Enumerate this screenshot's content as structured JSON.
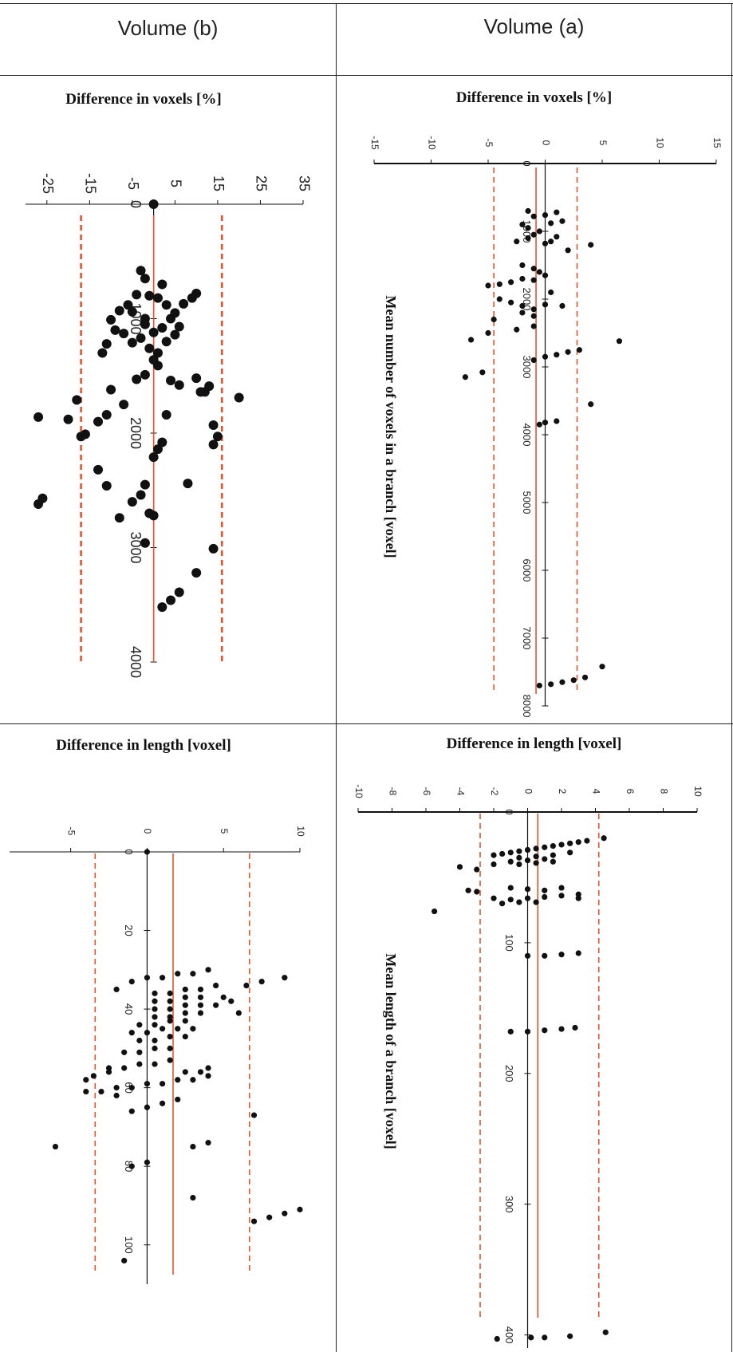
{
  "headers": {
    "col_left": "Volume (b)",
    "col_right": "Volume (a)"
  },
  "panels": {
    "b_voxels_title": "Difference in  voxels [%]",
    "a_voxels_title": "Difference in voxels [%]",
    "b_length_title": "Difference in length [voxel]",
    "a_length_title": "Difference in length [voxel]"
  },
  "colors": {
    "mean_line": "#e8532a",
    "limit_line": "#e8532a",
    "points": "#111111",
    "axis": "#111111"
  },
  "chart_data": [
    {
      "id": "b_voxels",
      "type": "scatter",
      "title": "Difference in  voxels [%]",
      "xlabel": "",
      "ylabel": "",
      "orientation": "rotated-90 (difference axis horizontal, mean value axis vertical)",
      "diff_ticks": [
        "-25",
        "-15",
        "-5",
        "5",
        "15",
        "25",
        "35"
      ],
      "diff_tick_values": [
        -25,
        -15,
        -5,
        5,
        15,
        25,
        35
      ],
      "diff_range": [
        -30,
        35
      ],
      "mean_ticks": [
        "0",
        "1000",
        "2000",
        "3000",
        "4000"
      ],
      "mean_tick_values": [
        0,
        1000,
        2000,
        3000,
        4000
      ],
      "mean_range": [
        0,
        4000
      ],
      "mean_line": 0,
      "limit_lines": [
        -17,
        16
      ],
      "points": [
        [
          0,
          0
        ],
        [
          -2,
          650
        ],
        [
          -3,
          580
        ],
        [
          2,
          700
        ],
        [
          -1,
          800
        ],
        [
          -4,
          790
        ],
        [
          -6,
          880
        ],
        [
          -5,
          940
        ],
        [
          -2,
          1000
        ],
        [
          1,
          820
        ],
        [
          3,
          880
        ],
        [
          5,
          950
        ],
        [
          7,
          870
        ],
        [
          9,
          820
        ],
        [
          10,
          780
        ],
        [
          -8,
          930
        ],
        [
          -10,
          1010
        ],
        [
          -9,
          1100
        ],
        [
          -7,
          1130
        ],
        [
          -11,
          1220
        ],
        [
          -12,
          1300
        ],
        [
          -5,
          1210
        ],
        [
          -3,
          1170
        ],
        [
          -1,
          1260
        ],
        [
          1,
          1300
        ],
        [
          3,
          1200
        ],
        [
          5,
          1140
        ],
        [
          -2,
          1050
        ],
        [
          0,
          1120
        ],
        [
          2,
          1080
        ],
        [
          4,
          1000
        ],
        [
          6,
          1070
        ],
        [
          0,
          1360
        ],
        [
          1,
          1410
        ],
        [
          -2,
          1490
        ],
        [
          4,
          1540
        ],
        [
          6,
          1580
        ],
        [
          10,
          1520
        ],
        [
          12,
          1640
        ],
        [
          13,
          1590
        ],
        [
          20,
          1690
        ],
        [
          -18,
          1710
        ],
        [
          -27,
          1860
        ],
        [
          -20,
          1880
        ],
        [
          -16,
          2010
        ],
        [
          -17,
          2030
        ],
        [
          -13,
          1900
        ],
        [
          -11,
          1840
        ],
        [
          -7,
          1750
        ],
        [
          -10,
          1620
        ],
        [
          -4,
          1530
        ],
        [
          3,
          1840
        ],
        [
          11,
          1640
        ],
        [
          14,
          1930
        ],
        [
          15,
          2030
        ],
        [
          14,
          2100
        ],
        [
          2,
          2080
        ],
        [
          1,
          2140
        ],
        [
          0,
          2210
        ],
        [
          -11,
          2460
        ],
        [
          -13,
          2320
        ],
        [
          -5,
          2600
        ],
        [
          -3,
          2540
        ],
        [
          -2,
          2450
        ],
        [
          -1,
          2700
        ],
        [
          0,
          2720
        ],
        [
          -8,
          2740
        ],
        [
          -27,
          2620
        ],
        [
          -26,
          2570
        ],
        [
          -2,
          2960
        ],
        [
          8,
          2440
        ],
        [
          14,
          3010
        ],
        [
          10,
          3220
        ],
        [
          6,
          3390
        ],
        [
          4,
          3460
        ],
        [
          2,
          3520
        ]
      ]
    },
    {
      "id": "a_voxels",
      "type": "scatter",
      "title": "Difference in voxels [%]",
      "xlabel": "",
      "ylabel": "Mean number of voxels in a branch [voxel]",
      "diff_ticks": [
        "-15",
        "-10",
        "-5",
        "0",
        "5",
        "10",
        "15"
      ],
      "diff_tick_values": [
        -15,
        -10,
        -5,
        0,
        5,
        10,
        15
      ],
      "diff_range": [
        -15,
        15
      ],
      "mean_ticks": [
        "0",
        "1000",
        "2000",
        "3000",
        "4000",
        "5000",
        "6000",
        "7000",
        "8000"
      ],
      "mean_tick_values": [
        0,
        1000,
        2000,
        3000,
        4000,
        5000,
        6000,
        7000,
        8000
      ],
      "mean_range": [
        0,
        8000
      ],
      "mean_line": -0.8,
      "limit_lines": [
        -4.5,
        2.8
      ],
      "points": [
        [
          -1.5,
          700
        ],
        [
          -1,
          780
        ],
        [
          0,
          760
        ],
        [
          1,
          720
        ],
        [
          -2,
          900
        ],
        [
          -1.5,
          950
        ],
        [
          -0.5,
          1000
        ],
        [
          0.5,
          880
        ],
        [
          1.5,
          850
        ],
        [
          -1,
          1050
        ],
        [
          -2.5,
          1150
        ],
        [
          -1.5,
          1100
        ],
        [
          0,
          1180
        ],
        [
          0.5,
          1150
        ],
        [
          1,
          1080
        ],
        [
          4,
          1200
        ],
        [
          2,
          1280
        ],
        [
          -2,
          1500
        ],
        [
          -1,
          1550
        ],
        [
          -0.5,
          1600
        ],
        [
          0,
          1650
        ],
        [
          -5,
          1800
        ],
        [
          -4,
          1780
        ],
        [
          -3,
          1750
        ],
        [
          -2,
          1700
        ],
        [
          -1,
          1720
        ],
        [
          0.5,
          1900
        ],
        [
          -4,
          2000
        ],
        [
          -3,
          2050
        ],
        [
          -2,
          2100
        ],
        [
          -1,
          2150
        ],
        [
          0,
          2080
        ],
        [
          1.5,
          2100
        ],
        [
          -4.5,
          2300
        ],
        [
          -2,
          2200
        ],
        [
          -1,
          2250
        ],
        [
          -2.5,
          2450
        ],
        [
          -1,
          2400
        ],
        [
          -6.5,
          2600
        ],
        [
          -5,
          2500
        ],
        [
          6.5,
          2620
        ],
        [
          -1,
          2900
        ],
        [
          0,
          2850
        ],
        [
          1,
          2820
        ],
        [
          2,
          2780
        ],
        [
          3,
          2750
        ],
        [
          -7,
          3150
        ],
        [
          -5.5,
          3080
        ],
        [
          4,
          3550
        ],
        [
          -0.5,
          3850
        ],
        [
          0,
          3820
        ],
        [
          1,
          3800
        ],
        [
          -0.5,
          7700
        ],
        [
          0.5,
          7680
        ],
        [
          1.5,
          7650
        ],
        [
          2.5,
          7620
        ],
        [
          3.5,
          7580
        ],
        [
          5,
          7420
        ]
      ]
    },
    {
      "id": "b_length",
      "type": "scatter",
      "title": "Difference in length [voxel]",
      "xlabel": "",
      "ylabel": "",
      "diff_ticks": [
        "-5",
        "0",
        "5",
        "10"
      ],
      "diff_tick_values": [
        -5,
        0,
        5,
        10
      ],
      "diff_range": [
        -9,
        10
      ],
      "mean_ticks": [
        "0",
        "20",
        "40",
        "60",
        "80",
        "100"
      ],
      "mean_tick_values": [
        0,
        20,
        40,
        60,
        80,
        100
      ],
      "mean_range": [
        0,
        110
      ],
      "mean_line": 1.7,
      "limit_lines": [
        -3.4,
        6.7
      ],
      "points": [
        [
          0,
          0
        ],
        [
          -2,
          35
        ],
        [
          -1,
          33
        ],
        [
          0,
          32
        ],
        [
          1,
          32
        ],
        [
          2,
          31
        ],
        [
          3,
          31
        ],
        [
          4,
          30
        ],
        [
          9,
          32
        ],
        [
          7.5,
          33
        ],
        [
          6.5,
          34
        ],
        [
          0.5,
          36
        ],
        [
          1.5,
          36
        ],
        [
          2.5,
          35
        ],
        [
          3.5,
          35
        ],
        [
          4.5,
          34
        ],
        [
          0.5,
          38
        ],
        [
          1.5,
          38
        ],
        [
          2.5,
          37
        ],
        [
          3.5,
          37
        ],
        [
          5,
          37
        ],
        [
          5.5,
          38
        ],
        [
          0.5,
          40
        ],
        [
          1.5,
          40
        ],
        [
          2.5,
          39
        ],
        [
          3.5,
          39
        ],
        [
          4.5,
          39
        ],
        [
          6,
          41
        ],
        [
          0.5,
          42
        ],
        [
          1.5,
          42
        ],
        [
          2.5,
          41
        ],
        [
          3.5,
          41
        ],
        [
          -0.5,
          44
        ],
        [
          0.5,
          44
        ],
        [
          1.5,
          43
        ],
        [
          2.5,
          43
        ],
        [
          -1,
          46
        ],
        [
          0,
          46
        ],
        [
          1,
          45
        ],
        [
          2,
          45
        ],
        [
          3,
          45
        ],
        [
          -0.5,
          48
        ],
        [
          0.5,
          48
        ],
        [
          1.5,
          47
        ],
        [
          2.5,
          47
        ],
        [
          -1.5,
          51
        ],
        [
          -0.5,
          51
        ],
        [
          0.5,
          50
        ],
        [
          1.5,
          50
        ],
        [
          -2.5,
          55
        ],
        [
          -1.5,
          55
        ],
        [
          -0.5,
          54
        ],
        [
          0.5,
          54
        ],
        [
          1.5,
          53
        ],
        [
          -3.5,
          57
        ],
        [
          -2.5,
          56
        ],
        [
          -4,
          58
        ],
        [
          2.5,
          56
        ],
        [
          3.5,
          56
        ],
        [
          4,
          55
        ],
        [
          -4,
          61
        ],
        [
          -3,
          61
        ],
        [
          -2,
          60
        ],
        [
          -1,
          60
        ],
        [
          0,
          59
        ],
        [
          1,
          59
        ],
        [
          2,
          58
        ],
        [
          3,
          58
        ],
        [
          4,
          57
        ],
        [
          -1,
          66
        ],
        [
          0,
          65
        ],
        [
          1,
          64
        ],
        [
          2,
          63
        ],
        [
          -2,
          62
        ],
        [
          7,
          67
        ],
        [
          3,
          75
        ],
        [
          4,
          74
        ],
        [
          -6,
          75
        ],
        [
          -1,
          80
        ],
        [
          0,
          79
        ],
        [
          3,
          88
        ],
        [
          7,
          94
        ],
        [
          8,
          93
        ],
        [
          9,
          92
        ],
        [
          10,
          91
        ],
        [
          -1.5,
          104
        ]
      ]
    },
    {
      "id": "a_length",
      "type": "scatter",
      "title": "Difference in length [voxel]",
      "xlabel": "",
      "ylabel": "Mean length of a branch [voxel]",
      "diff_ticks": [
        "-10",
        "-8",
        "-6",
        "-4",
        "-2",
        "0",
        "2",
        "4",
        "6",
        "8",
        "10"
      ],
      "diff_tick_values": [
        -10,
        -8,
        -6,
        -4,
        -2,
        0,
        2,
        4,
        6,
        8,
        10
      ],
      "diff_range": [
        -10,
        10
      ],
      "mean_ticks": [
        "0",
        "100",
        "200",
        "300",
        "400"
      ],
      "mean_tick_values": [
        0,
        100,
        200,
        300,
        400
      ],
      "mean_range": [
        0,
        410
      ],
      "mean_line": 0.6,
      "limit_lines": [
        -2.8,
        4.2
      ],
      "points": [
        [
          4.5,
          20
        ],
        [
          3.5,
          22
        ],
        [
          3,
          23
        ],
        [
          2.5,
          24
        ],
        [
          2,
          25
        ],
        [
          1.5,
          26
        ],
        [
          1,
          27
        ],
        [
          0.5,
          28
        ],
        [
          0,
          29
        ],
        [
          -0.5,
          30
        ],
        [
          -1,
          31
        ],
        [
          -1.5,
          32
        ],
        [
          -2,
          33
        ],
        [
          -0.5,
          35
        ],
        [
          0.5,
          34
        ],
        [
          1.5,
          33
        ],
        [
          2.5,
          31
        ],
        [
          0,
          37
        ],
        [
          1,
          36
        ],
        [
          -1,
          38
        ],
        [
          -2,
          40
        ],
        [
          -4,
          42
        ],
        [
          -3,
          44
        ],
        [
          -0.5,
          40
        ],
        [
          0.5,
          39
        ],
        [
          1.5,
          38
        ],
        [
          -3,
          61
        ],
        [
          -3.5,
          60
        ],
        [
          -1,
          58
        ],
        [
          0,
          59
        ],
        [
          1,
          60
        ],
        [
          2,
          58
        ],
        [
          -2,
          66
        ],
        [
          -1,
          67
        ],
        [
          0,
          66
        ],
        [
          1,
          65
        ],
        [
          2,
          64
        ],
        [
          3,
          63
        ],
        [
          -5.5,
          76
        ],
        [
          -1.5,
          70
        ],
        [
          -0.5,
          69
        ],
        [
          0.5,
          69
        ],
        [
          3,
          66
        ],
        [
          0,
          110
        ],
        [
          1,
          110
        ],
        [
          2,
          109
        ],
        [
          3,
          108
        ],
        [
          -1,
          168
        ],
        [
          0,
          168
        ],
        [
          1,
          167
        ],
        [
          2,
          166
        ],
        [
          2.8,
          165
        ],
        [
          -1.8,
          403
        ],
        [
          0.2,
          402
        ],
        [
          1,
          402
        ],
        [
          2.5,
          401
        ],
        [
          4.6,
          398
        ]
      ]
    }
  ]
}
